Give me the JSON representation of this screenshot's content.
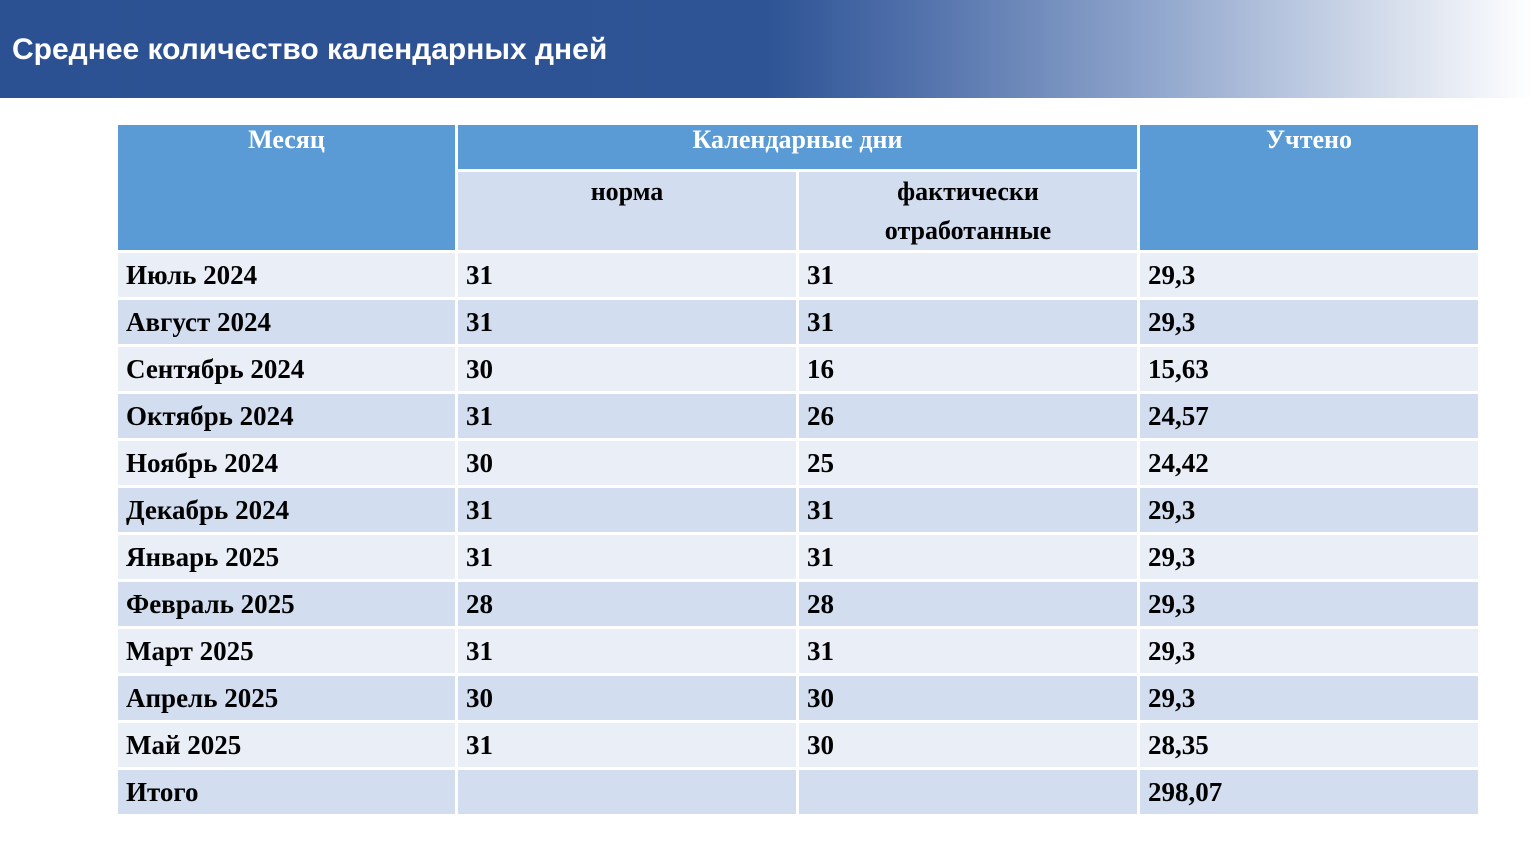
{
  "title": "Среднее количество календарных дней",
  "table": {
    "headers": {
      "month": "Месяц",
      "calendar_days": "Календарные дни",
      "norm": "норма",
      "actual_line1": "фактически",
      "actual_line2": "отработанные",
      "counted": "Учтено"
    },
    "rows": [
      {
        "month": "Июль 2024",
        "norm": "31",
        "actual": "31",
        "counted": "29,3"
      },
      {
        "month": "Август 2024",
        "norm": "31",
        "actual": "31",
        "counted": "29,3"
      },
      {
        "month": "Сентябрь 2024",
        "norm": "30",
        "actual": "16",
        "counted": "15,63"
      },
      {
        "month": "Октябрь 2024",
        "norm": "31",
        "actual": "26",
        "counted": "24,57"
      },
      {
        "month": "Ноябрь 2024",
        "norm": "30",
        "actual": "25",
        "counted": "24,42"
      },
      {
        "month": "Декабрь 2024",
        "norm": "31",
        "actual": "31",
        "counted": "29,3"
      },
      {
        "month": "Январь 2025",
        "norm": "31",
        "actual": "31",
        "counted": "29,3"
      },
      {
        "month": "Февраль 2025",
        "norm": "28",
        "actual": "28",
        "counted": "29,3"
      },
      {
        "month": "Март 2025",
        "norm": "31",
        "actual": "31",
        "counted": "29,3"
      },
      {
        "month": "Апрель 2025",
        "norm": "30",
        "actual": "30",
        "counted": "29,3"
      },
      {
        "month": "Май 2025",
        "norm": "31",
        "actual": "30",
        "counted": "28,35"
      }
    ],
    "total": {
      "label": "Итого",
      "norm": "",
      "actual": "",
      "counted": "298,07"
    }
  },
  "colors": {
    "title_bar": "#2c5192",
    "header_dark": "#5b9bd5",
    "row_dark": "#d2deef",
    "row_light": "#e9eef7"
  }
}
